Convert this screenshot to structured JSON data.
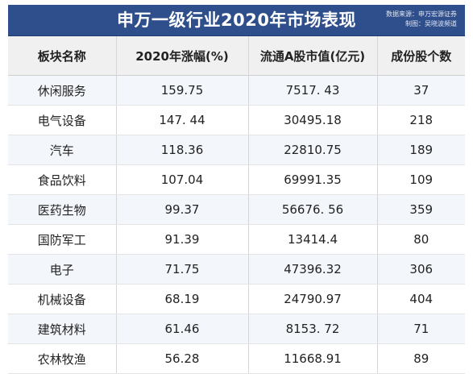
{
  "title": "申万一级行业2020年市场表现",
  "source_line1": "数据来源：申万宏源证券",
  "source_line2": "制图：吴晓波频道",
  "headers": [
    "板块名称",
    "2020年涨幅(%)",
    "流通A股市值(亿元)",
    "成份股个数"
  ],
  "rows": [
    [
      "休闲服务",
      "159.75",
      "7517. 43",
      "37"
    ],
    [
      "电气设备",
      "147. 44",
      "30495.18",
      "218"
    ],
    [
      "汽车",
      "118.36",
      "22810.75",
      "189"
    ],
    [
      "食品饮料",
      "107.04",
      "69991.35",
      "109"
    ],
    [
      "医药生物",
      "99.37",
      "56676. 56",
      "359"
    ],
    [
      "国防军工",
      "91.39",
      "13414.4",
      "80"
    ],
    [
      "电子",
      "71.75",
      "47396.32",
      "306"
    ],
    [
      "机械设备",
      "68.19",
      "24790.97",
      "404"
    ],
    [
      "建筑材料",
      "61.46",
      "8153. 72",
      "71"
    ],
    [
      "农林牧渔",
      "56.28",
      "11668.91",
      "89"
    ]
  ]
}
